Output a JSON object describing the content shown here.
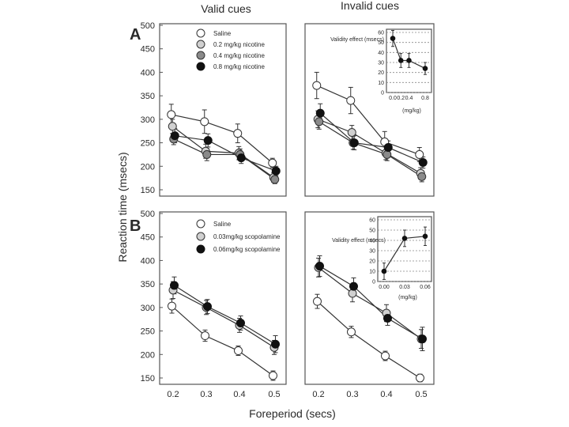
{
  "figure": {
    "col_titles": [
      "Valid cues",
      "Invalid cues"
    ],
    "y_label": "Reaction time (msecs)",
    "x_label": "Foreperiod (secs)"
  },
  "chart_data": [
    {
      "type": "line",
      "panel": "A",
      "title": "Valid cues",
      "x": [
        0.2,
        0.3,
        0.4,
        0.5
      ],
      "x_ticks": [
        "0.2",
        "0.3",
        "0.4",
        "0.5"
      ],
      "ylim": [
        150,
        500
      ],
      "y_ticks": [
        "150",
        "200",
        "250",
        "300",
        "350",
        "400",
        "450",
        "500"
      ],
      "series": [
        {
          "name": "Saline",
          "style": "open",
          "values": [
            310,
            295,
            270,
            207
          ],
          "err": [
            22,
            25,
            20,
            10
          ]
        },
        {
          "name": "0.2 mg/kg nicotine",
          "style": "light",
          "values": [
            285,
            232,
            228,
            176
          ],
          "err": [
            15,
            15,
            14,
            10
          ]
        },
        {
          "name": "0.4 mg/kg nicotine",
          "style": "hatched",
          "values": [
            258,
            225,
            225,
            172
          ],
          "err": [
            12,
            13,
            12,
            9
          ]
        },
        {
          "name": "0.8 mg/kg nicotine",
          "style": "filled",
          "values": [
            265,
            255,
            218,
            190
          ],
          "err": [
            15,
            14,
            12,
            10
          ]
        }
      ]
    },
    {
      "type": "line",
      "panel": "A",
      "title": "Invalid cues",
      "x": [
        0.2,
        0.3,
        0.4,
        0.5
      ],
      "x_ticks": [
        "0.2",
        "0.3",
        "0.4",
        "0.5"
      ],
      "ylim": [
        150,
        500
      ],
      "series": [
        {
          "name": "Saline",
          "style": "open",
          "values": [
            372,
            340,
            252,
            225
          ],
          "err": [
            28,
            28,
            22,
            15
          ]
        },
        {
          "name": "0.2 mg/kg nicotine",
          "style": "light",
          "values": [
            300,
            272,
            228,
            185
          ],
          "err": [
            18,
            15,
            14,
            12
          ]
        },
        {
          "name": "0.4 mg/kg nicotine",
          "style": "hatched",
          "values": [
            295,
            250,
            225,
            178
          ],
          "err": [
            16,
            14,
            13,
            11
          ]
        },
        {
          "name": "0.8 mg/kg nicotine",
          "style": "filled",
          "values": [
            313,
            250,
            240,
            208
          ],
          "err": [
            20,
            15,
            14,
            12
          ]
        }
      ],
      "inset": {
        "ylabel": "Validity effect (msecs)",
        "xlabel": "(mg/kg)",
        "x_ticks": [
          "0.0",
          "0.2",
          "0.4",
          "0.8"
        ],
        "x": [
          0.0,
          0.2,
          0.4,
          0.8
        ],
        "values": [
          54,
          32,
          32,
          24
        ],
        "err": [
          8,
          7,
          7,
          6
        ],
        "ylim": [
          0,
          60
        ],
        "y_ticks": [
          "0",
          "10",
          "20",
          "30",
          "40",
          "50",
          "60"
        ]
      }
    },
    {
      "type": "line",
      "panel": "B",
      "title": "Valid cues",
      "x": [
        0.2,
        0.3,
        0.4,
        0.5
      ],
      "x_ticks": [
        "0.2",
        "0.3",
        "0.4",
        "0.5"
      ],
      "ylim": [
        150,
        500
      ],
      "y_ticks": [
        "150",
        "200",
        "250",
        "300",
        "350",
        "400",
        "450",
        "500"
      ],
      "series": [
        {
          "name": "Saline",
          "style": "open",
          "values": [
            303,
            240,
            208,
            155
          ],
          "err": [
            15,
            12,
            10,
            10
          ]
        },
        {
          "name": "0.03mg/kg scopolamine",
          "style": "light",
          "values": [
            337,
            300,
            262,
            215
          ],
          "err": [
            18,
            15,
            15,
            15
          ]
        },
        {
          "name": "0.06mg/kg scopolamine",
          "style": "filled",
          "values": [
            347,
            302,
            267,
            222
          ],
          "err": [
            18,
            15,
            15,
            18
          ]
        }
      ]
    },
    {
      "type": "line",
      "panel": "B",
      "title": "Invalid cues",
      "x": [
        0.2,
        0.3,
        0.4,
        0.5
      ],
      "x_ticks": [
        "0.2",
        "0.3",
        "0.4",
        "0.5"
      ],
      "ylim": [
        150,
        500
      ],
      "series": [
        {
          "name": "Saline",
          "style": "open",
          "values": [
            313,
            248,
            197,
            150
          ],
          "err": [
            15,
            12,
            10,
            8
          ]
        },
        {
          "name": "0.03mg/kg scopolamine",
          "style": "light",
          "values": [
            385,
            330,
            288,
            233
          ],
          "err": [
            20,
            18,
            18,
            20
          ]
        },
        {
          "name": "0.06mg/kg scopolamine",
          "style": "filled",
          "values": [
            388,
            345,
            277,
            233
          ],
          "err": [
            22,
            18,
            15,
            25
          ]
        }
      ],
      "inset": {
        "ylabel": "Validity effect (msecs)",
        "xlabel": "(mg/kg)",
        "x_ticks": [
          "0.00",
          "0.03",
          "0.06"
        ],
        "x": [
          0.0,
          0.03,
          0.06
        ],
        "values": [
          10,
          42,
          44
        ],
        "err": [
          8,
          8,
          9
        ],
        "ylim": [
          0,
          60
        ],
        "y_ticks": [
          "0",
          "10",
          "20",
          "30",
          "40",
          "50",
          "60"
        ]
      }
    }
  ]
}
